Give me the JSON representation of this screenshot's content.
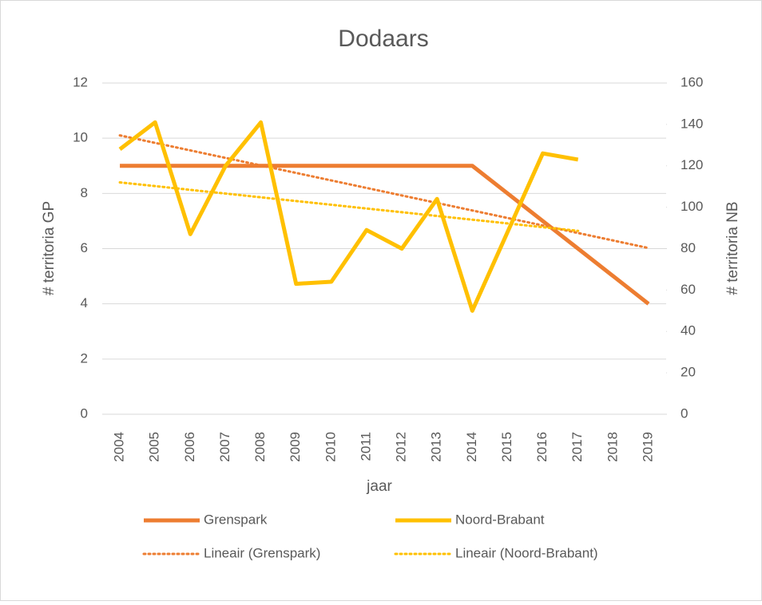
{
  "chart_data": {
    "type": "line",
    "title": "Dodaars",
    "x_label": "jaar",
    "y_label": "# territoria GP",
    "y2_label": "# territoria NB",
    "categories": [
      "2004",
      "2005",
      "2006",
      "2007",
      "2008",
      "2009",
      "2010",
      "2011",
      "2012",
      "2013",
      "2014",
      "2015",
      "2016",
      "2017",
      "2018",
      "2019"
    ],
    "series": [
      {
        "name": "Grenspark",
        "color": "#ed7d31",
        "values": [
          9,
          9,
          9,
          9,
          9,
          9,
          9,
          9,
          9,
          9,
          9,
          8,
          7,
          6,
          5,
          4
        ],
        "trendline": "Lineair (Grenspark)"
      },
      {
        "name": "Noord-Brabant",
        "color": "#ffc000",
        "axis": "y2",
        "values": [
          128,
          141,
          87,
          120,
          141,
          63,
          64,
          89,
          80,
          104,
          50,
          88,
          126,
          123,
          null,
          null
        ],
        "trendline": "Lineair (Noord-Brabant)"
      }
    ],
    "ylim": [
      0,
      12
    ],
    "yticks": [
      0,
      2,
      4,
      6,
      8,
      10,
      12
    ],
    "y2lim": [
      0,
      160
    ],
    "y2ticks": [
      0,
      20,
      40,
      60,
      80,
      100,
      120,
      140,
      160
    ],
    "grid": true,
    "legend": "bottom"
  }
}
